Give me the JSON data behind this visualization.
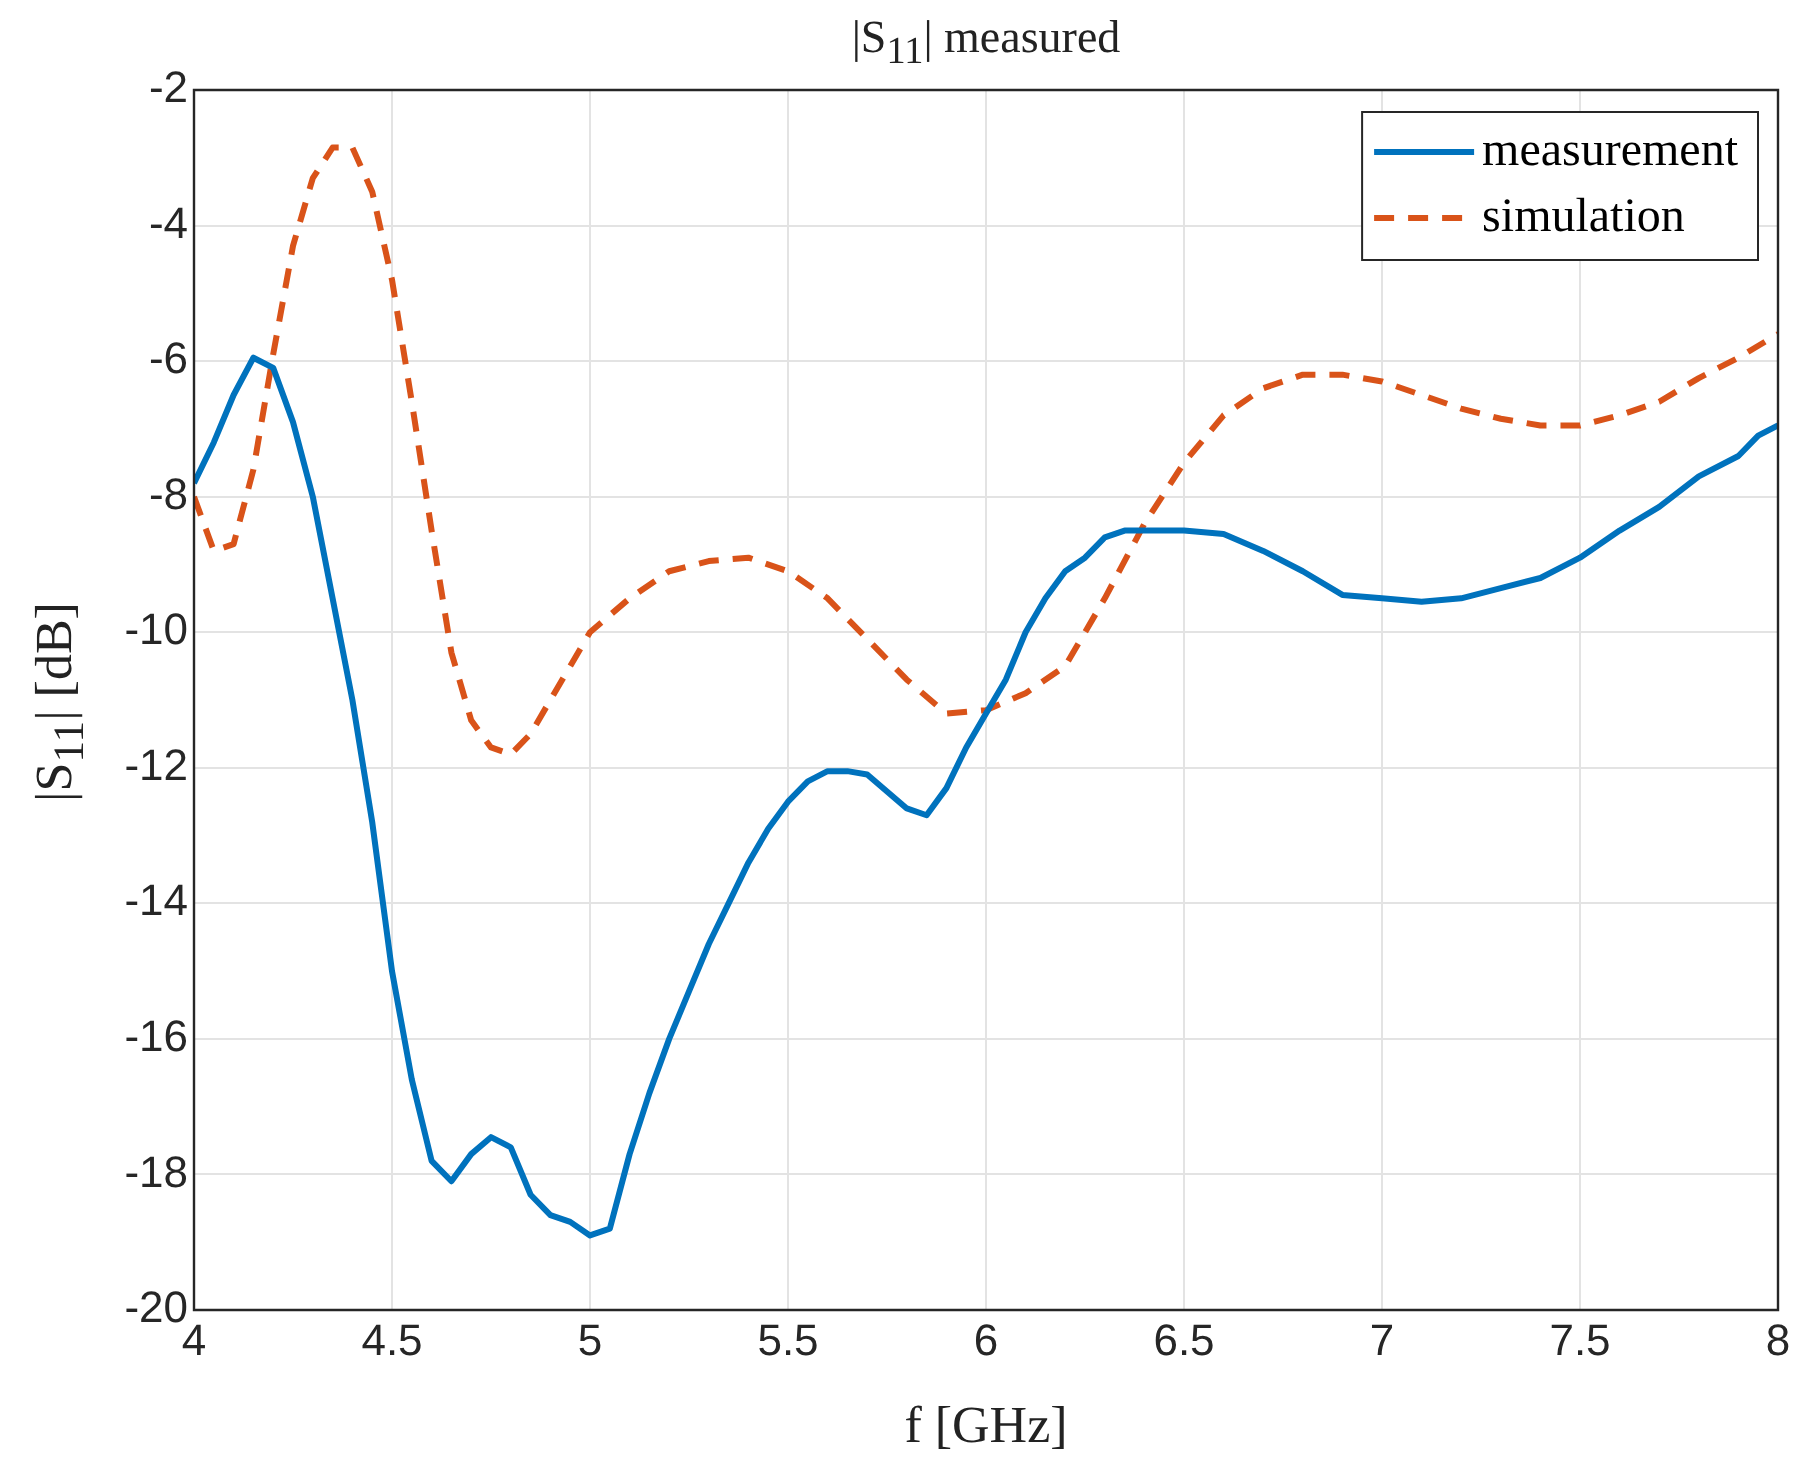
{
  "chart_data": {
    "type": "line",
    "title": "|S$_{11}$| measured",
    "xlabel": "f [GHz]",
    "ylabel": "|S$_{11}$| [dB]",
    "xlim": [
      4,
      8
    ],
    "xticks": [
      4,
      4.5,
      5,
      5.5,
      6,
      6.5,
      7,
      7.5,
      8
    ],
    "ylim": [
      -20,
      -2
    ],
    "yticks": [
      -20,
      -18,
      -16,
      -14,
      -12,
      -10,
      -8,
      -6,
      -4,
      -2
    ],
    "grid": true,
    "legend": "top right",
    "marker": "none",
    "series": [
      {
        "name": "measurement",
        "color": "#0072bd",
        "line_style": "solid",
        "x": [
          4.0,
          4.05,
          4.1,
          4.15,
          4.2,
          4.25,
          4.3,
          4.35,
          4.4,
          4.45,
          4.5,
          4.55,
          4.6,
          4.65,
          4.7,
          4.75,
          4.8,
          4.85,
          4.9,
          4.95,
          5.0,
          5.05,
          5.1,
          5.15,
          5.2,
          5.25,
          5.3,
          5.35,
          5.4,
          5.45,
          5.5,
          5.55,
          5.6,
          5.65,
          5.7,
          5.75,
          5.8,
          5.85,
          5.9,
          5.95,
          6.0,
          6.05,
          6.1,
          6.15,
          6.2,
          6.25,
          6.3,
          6.35,
          6.4,
          6.5,
          6.6,
          6.7,
          6.8,
          6.9,
          7.0,
          7.1,
          7.2,
          7.3,
          7.4,
          7.5,
          7.6,
          7.7,
          7.8,
          7.9,
          7.95,
          8.0
        ],
        "values": [
          -7.8,
          -7.2,
          -6.5,
          -5.95,
          -6.1,
          -6.9,
          -8.0,
          -9.5,
          -11.0,
          -12.8,
          -15.0,
          -16.6,
          -17.8,
          -18.1,
          -17.7,
          -17.45,
          -17.6,
          -18.3,
          -18.6,
          -18.7,
          -18.9,
          -18.8,
          -17.7,
          -16.8,
          -16.0,
          -15.3,
          -14.6,
          -14.0,
          -13.4,
          -12.9,
          -12.5,
          -12.2,
          -12.05,
          -12.05,
          -12.1,
          -12.35,
          -12.6,
          -12.7,
          -12.3,
          -11.7,
          -11.2,
          -10.7,
          -10.0,
          -9.5,
          -9.1,
          -8.9,
          -8.6,
          -8.5,
          -8.5,
          -8.5,
          -8.55,
          -8.8,
          -9.1,
          -9.45,
          -9.5,
          -9.55,
          -9.5,
          -9.35,
          -9.2,
          -8.9,
          -8.5,
          -8.15,
          -7.7,
          -7.4,
          -7.1,
          -6.95
        ]
      },
      {
        "name": "simulation",
        "color": "#d95319",
        "line_style": "dashed",
        "x": [
          4.0,
          4.05,
          4.1,
          4.15,
          4.2,
          4.25,
          4.3,
          4.35,
          4.4,
          4.45,
          4.5,
          4.55,
          4.6,
          4.65,
          4.7,
          4.75,
          4.8,
          4.85,
          4.9,
          4.95,
          5.0,
          5.1,
          5.2,
          5.3,
          5.4,
          5.5,
          5.6,
          5.7,
          5.8,
          5.9,
          6.0,
          6.1,
          6.2,
          6.3,
          6.4,
          6.5,
          6.6,
          6.7,
          6.8,
          6.9,
          7.0,
          7.1,
          7.2,
          7.3,
          7.4,
          7.5,
          7.6,
          7.7,
          7.8,
          7.9,
          8.0
        ],
        "values": [
          -8.0,
          -8.8,
          -8.7,
          -7.6,
          -5.9,
          -4.3,
          -3.3,
          -2.85,
          -2.85,
          -3.5,
          -4.8,
          -6.6,
          -8.5,
          -10.3,
          -11.3,
          -11.7,
          -11.8,
          -11.5,
          -11.0,
          -10.5,
          -10.0,
          -9.5,
          -9.1,
          -8.95,
          -8.9,
          -9.1,
          -9.5,
          -10.1,
          -10.7,
          -11.2,
          -11.15,
          -10.9,
          -10.5,
          -9.5,
          -8.4,
          -7.5,
          -6.8,
          -6.4,
          -6.2,
          -6.2,
          -6.3,
          -6.5,
          -6.7,
          -6.85,
          -6.95,
          -6.95,
          -6.8,
          -6.6,
          -6.25,
          -5.95,
          -5.6
        ]
      }
    ]
  }
}
